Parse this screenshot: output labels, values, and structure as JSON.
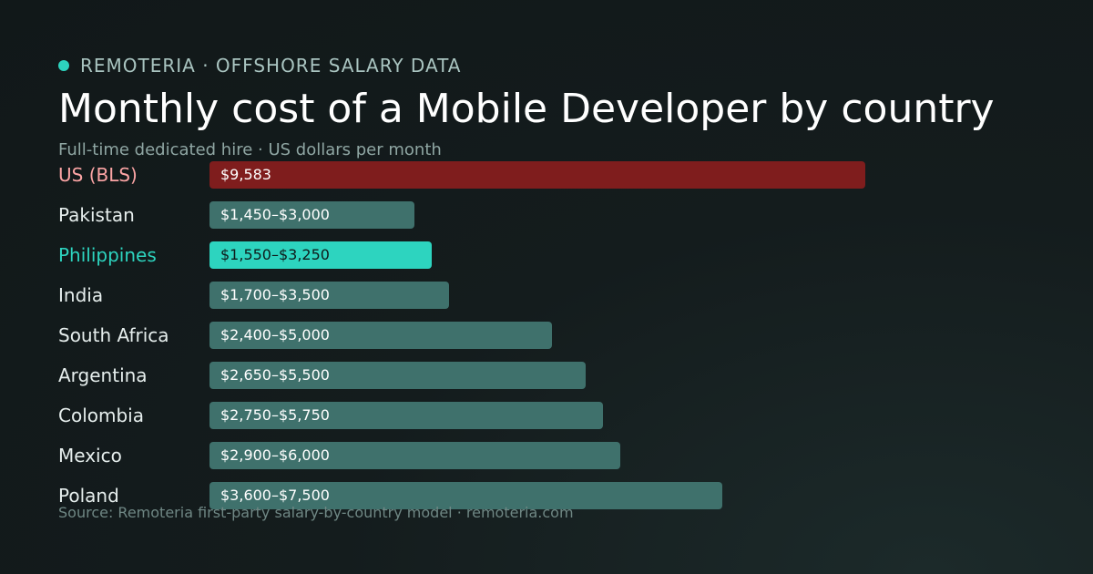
{
  "header": {
    "brand": "REMOTERIA · OFFSHORE SALARY DATA",
    "title": "Monthly cost of a Mobile Developer by country",
    "subtitle": "Full-time dedicated hire · US dollars per month"
  },
  "footer": {
    "source": "Source: Remoteria first-party salary-by-country model · remoteria.com"
  },
  "colors": {
    "benchmark": "#7f1d1d",
    "benchmark_label": "#fca5a5",
    "highlight": "#2dd4bf",
    "default_bar": "#3f716c",
    "default_label": "#e6eeed"
  },
  "chart_data": {
    "type": "bar",
    "orientation": "horizontal",
    "unit": "USD per month",
    "xlim": [
      0,
      10000
    ],
    "grid": false,
    "rows": [
      {
        "category": "US (BLS)",
        "value_label": "$9,583",
        "low": 0,
        "high": 9583,
        "style": "benchmark"
      },
      {
        "category": "Pakistan",
        "value_label": "$1,450–$3,000",
        "low": 1450,
        "high": 3000,
        "style": "default"
      },
      {
        "category": "Philippines",
        "value_label": "$1,550–$3,250",
        "low": 1550,
        "high": 3250,
        "style": "highlight"
      },
      {
        "category": "India",
        "value_label": "$1,700–$3,500",
        "low": 1700,
        "high": 3500,
        "style": "default"
      },
      {
        "category": "South Africa",
        "value_label": "$2,400–$5,000",
        "low": 2400,
        "high": 5000,
        "style": "default"
      },
      {
        "category": "Argentina",
        "value_label": "$2,650–$5,500",
        "low": 2650,
        "high": 5500,
        "style": "default"
      },
      {
        "category": "Colombia",
        "value_label": "$2,750–$5,750",
        "low": 2750,
        "high": 5750,
        "style": "default"
      },
      {
        "category": "Mexico",
        "value_label": "$2,900–$6,000",
        "low": 2900,
        "high": 6000,
        "style": "default"
      },
      {
        "category": "Poland",
        "value_label": "$3,600–$7,500",
        "low": 3600,
        "high": 7500,
        "style": "default"
      }
    ]
  }
}
